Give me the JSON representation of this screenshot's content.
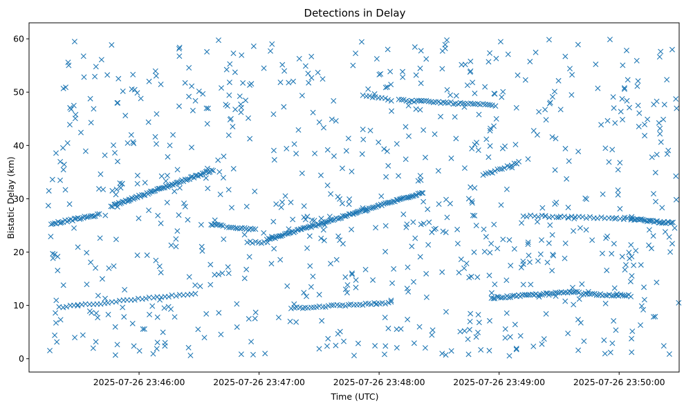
{
  "chart_data": {
    "type": "scatter",
    "title": "Detections in Delay",
    "xlabel": "Time (UTC)",
    "ylabel": "Bistatic Delay (km)",
    "marker": "x",
    "color": "#1f77b4",
    "grid": false,
    "legend": "none",
    "x_unit": "seconds after 2025-07-26 23:45:00 UTC",
    "xlim": [
      5,
      330
    ],
    "ylim": [
      -2.5,
      63
    ],
    "x_ticks": [
      {
        "value": 60,
        "label": "2025-07-26 23:46:00"
      },
      {
        "value": 120,
        "label": "2025-07-26 23:47:00"
      },
      {
        "value": 180,
        "label": "2025-07-26 23:48:00"
      },
      {
        "value": 240,
        "label": "2025-07-26 23:49:00"
      },
      {
        "value": 300,
        "label": "2025-07-26 23:50:00"
      }
    ],
    "y_ticks": [
      0,
      10,
      20,
      30,
      40,
      50,
      60
    ],
    "tracks": [
      {
        "x_start": 16,
        "x_end": 40,
        "y_start": 25.3,
        "y_end": 27.0,
        "count": 28
      },
      {
        "x_start": 46,
        "x_end": 97,
        "y_start": 28.6,
        "y_end": 35.4,
        "count": 70
      },
      {
        "x_start": 96,
        "x_end": 102,
        "y_start": 25.2,
        "y_end": 25.0,
        "count": 8
      },
      {
        "x_start": 104,
        "x_end": 118,
        "y_start": 24.7,
        "y_end": 24.2,
        "count": 14
      },
      {
        "x_start": 114,
        "x_end": 124,
        "y_start": 21.9,
        "y_end": 21.7,
        "count": 8
      },
      {
        "x_start": 124,
        "x_end": 202,
        "y_start": 22.3,
        "y_end": 31.2,
        "count": 100
      },
      {
        "x_start": 172,
        "x_end": 186,
        "y_start": 49.5,
        "y_end": 48.5,
        "count": 10
      },
      {
        "x_start": 190,
        "x_end": 238,
        "y_start": 48.5,
        "y_end": 47.5,
        "count": 40
      },
      {
        "x_start": 232,
        "x_end": 250,
        "y_start": 34.4,
        "y_end": 36.8,
        "count": 16
      },
      {
        "x_start": 236,
        "x_end": 280,
        "y_start": 11.4,
        "y_end": 12.6,
        "count": 46
      },
      {
        "x_start": 281,
        "x_end": 306,
        "y_start": 12.2,
        "y_end": 11.8,
        "count": 24
      },
      {
        "x_start": 306,
        "x_end": 327,
        "y_start": 26.2,
        "y_end": 25.4,
        "count": 30
      },
      {
        "x_start": 252,
        "x_end": 306,
        "y_start": 26.8,
        "y_end": 26.2,
        "count": 30
      },
      {
        "x_start": 20,
        "x_end": 86,
        "y_start": 9.6,
        "y_end": 12.2,
        "count": 36
      },
      {
        "x_start": 136,
        "x_end": 186,
        "y_start": 9.5,
        "y_end": 10.5,
        "count": 36
      }
    ],
    "noise": {
      "x_range": [
        14,
        330
      ],
      "y_range": [
        0.5,
        60
      ],
      "count": 780
    }
  }
}
